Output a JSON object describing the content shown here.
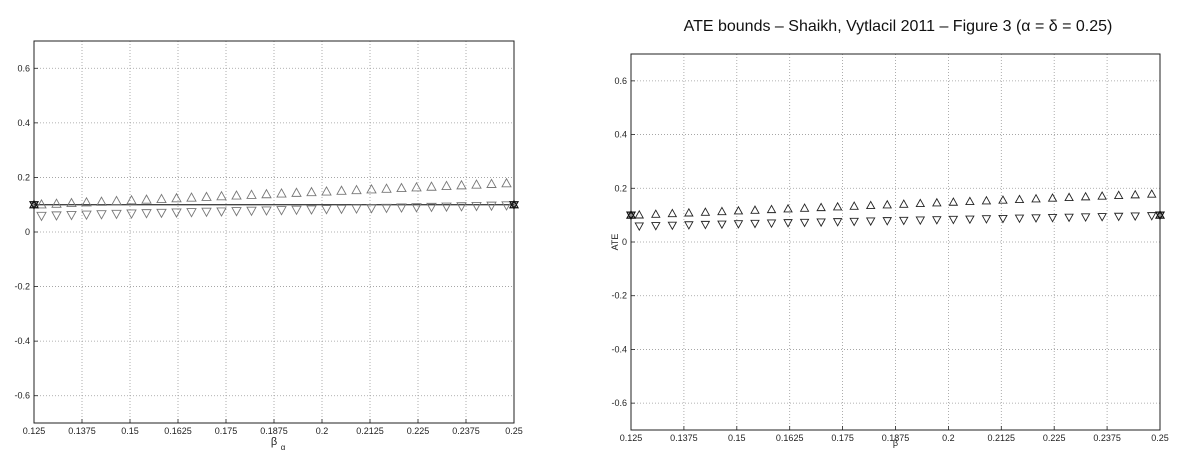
{
  "chart_data": [
    {
      "type": "scatter",
      "title": "",
      "xlabel": "β",
      "xlabel_sub": "α",
      "ylabel": "",
      "xlim": [
        0.125,
        0.25
      ],
      "ylim": [
        -0.7,
        0.7
      ],
      "grid": true,
      "xticks": [
        "0.125",
        "0.1375",
        "0.15",
        "0.1625",
        "0.175",
        "0.1875",
        "0.2",
        "0.2125",
        "0.225",
        "0.2375",
        "0.25"
      ],
      "yticks": [
        "0.6",
        "0.4",
        "0.2",
        "0",
        "-0.2",
        "-0.4",
        "-0.6"
      ],
      "series": [
        {
          "marker": "triangle-up",
          "x": [
            0.125,
            0.25
          ],
          "y": [
            0.1,
            0.18
          ]
        },
        {
          "marker": "triangle-down",
          "x": [
            0.125,
            0.25
          ],
          "y": [
            0.1,
            0.1
          ]
        },
        {
          "marker": "line",
          "x": [
            0.125,
            0.25
          ],
          "y": [
            0.1,
            0.1
          ]
        }
      ]
    },
    {
      "type": "scatter",
      "title": "ATE bounds – Shaikh, Vytlacil 2011 – Figure 3 (α = δ = 0.25)",
      "xlabel": "β",
      "ylabel": "ATE",
      "xlim": [
        0.125,
        0.25
      ],
      "ylim": [
        -0.7,
        0.7
      ],
      "grid": true,
      "xticks": [
        "0.125",
        "0.1375",
        "0.15",
        "0.1625",
        "0.175",
        "0.1875",
        "0.2",
        "0.2125",
        "0.225",
        "0.2375",
        "0.25"
      ],
      "yticks": [
        "0.6",
        "0.4",
        "0.2",
        "0",
        "-0.2",
        "-0.4",
        "-0.6"
      ],
      "series": [
        {
          "marker": "triangle-up",
          "x": [
            0.125,
            0.25
          ],
          "y": [
            0.1,
            0.18
          ]
        },
        {
          "marker": "triangle-down",
          "x": [
            0.125,
            0.25
          ],
          "y": [
            0.1,
            0.1
          ]
        }
      ]
    }
  ]
}
